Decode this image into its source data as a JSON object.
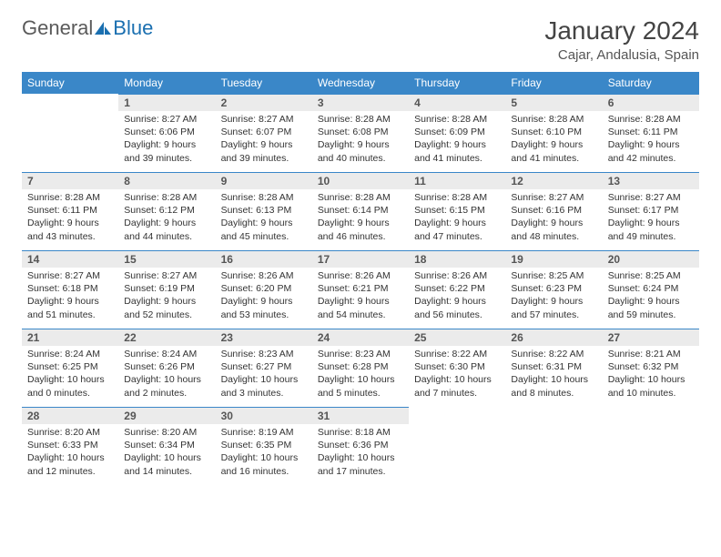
{
  "logo": {
    "general": "General",
    "blue": "Blue"
  },
  "title": "January 2024",
  "location": "Cajar, Andalusia, Spain",
  "colors": {
    "header_bg": "#3a87c8",
    "header_text": "#ffffff",
    "daynum_bg": "#ebebeb",
    "daynum_border": "#3a87c8",
    "logo_gray": "#5a5a5a",
    "logo_blue": "#1a6fb0"
  },
  "font": {
    "family": "Arial",
    "title_size": 28,
    "location_size": 15,
    "header_size": 12,
    "day_size": 10.5
  },
  "weekdays": [
    "Sunday",
    "Monday",
    "Tuesday",
    "Wednesday",
    "Thursday",
    "Friday",
    "Saturday"
  ],
  "start_offset": 1,
  "days": [
    {
      "n": "1",
      "sr": "8:27 AM",
      "ss": "6:06 PM",
      "dl": "9 hours and 39 minutes."
    },
    {
      "n": "2",
      "sr": "8:27 AM",
      "ss": "6:07 PM",
      "dl": "9 hours and 39 minutes."
    },
    {
      "n": "3",
      "sr": "8:28 AM",
      "ss": "6:08 PM",
      "dl": "9 hours and 40 minutes."
    },
    {
      "n": "4",
      "sr": "8:28 AM",
      "ss": "6:09 PM",
      "dl": "9 hours and 41 minutes."
    },
    {
      "n": "5",
      "sr": "8:28 AM",
      "ss": "6:10 PM",
      "dl": "9 hours and 41 minutes."
    },
    {
      "n": "6",
      "sr": "8:28 AM",
      "ss": "6:11 PM",
      "dl": "9 hours and 42 minutes."
    },
    {
      "n": "7",
      "sr": "8:28 AM",
      "ss": "6:11 PM",
      "dl": "9 hours and 43 minutes."
    },
    {
      "n": "8",
      "sr": "8:28 AM",
      "ss": "6:12 PM",
      "dl": "9 hours and 44 minutes."
    },
    {
      "n": "9",
      "sr": "8:28 AM",
      "ss": "6:13 PM",
      "dl": "9 hours and 45 minutes."
    },
    {
      "n": "10",
      "sr": "8:28 AM",
      "ss": "6:14 PM",
      "dl": "9 hours and 46 minutes."
    },
    {
      "n": "11",
      "sr": "8:28 AM",
      "ss": "6:15 PM",
      "dl": "9 hours and 47 minutes."
    },
    {
      "n": "12",
      "sr": "8:27 AM",
      "ss": "6:16 PM",
      "dl": "9 hours and 48 minutes."
    },
    {
      "n": "13",
      "sr": "8:27 AM",
      "ss": "6:17 PM",
      "dl": "9 hours and 49 minutes."
    },
    {
      "n": "14",
      "sr": "8:27 AM",
      "ss": "6:18 PM",
      "dl": "9 hours and 51 minutes."
    },
    {
      "n": "15",
      "sr": "8:27 AM",
      "ss": "6:19 PM",
      "dl": "9 hours and 52 minutes."
    },
    {
      "n": "16",
      "sr": "8:26 AM",
      "ss": "6:20 PM",
      "dl": "9 hours and 53 minutes."
    },
    {
      "n": "17",
      "sr": "8:26 AM",
      "ss": "6:21 PM",
      "dl": "9 hours and 54 minutes."
    },
    {
      "n": "18",
      "sr": "8:26 AM",
      "ss": "6:22 PM",
      "dl": "9 hours and 56 minutes."
    },
    {
      "n": "19",
      "sr": "8:25 AM",
      "ss": "6:23 PM",
      "dl": "9 hours and 57 minutes."
    },
    {
      "n": "20",
      "sr": "8:25 AM",
      "ss": "6:24 PM",
      "dl": "9 hours and 59 minutes."
    },
    {
      "n": "21",
      "sr": "8:24 AM",
      "ss": "6:25 PM",
      "dl": "10 hours and 0 minutes."
    },
    {
      "n": "22",
      "sr": "8:24 AM",
      "ss": "6:26 PM",
      "dl": "10 hours and 2 minutes."
    },
    {
      "n": "23",
      "sr": "8:23 AM",
      "ss": "6:27 PM",
      "dl": "10 hours and 3 minutes."
    },
    {
      "n": "24",
      "sr": "8:23 AM",
      "ss": "6:28 PM",
      "dl": "10 hours and 5 minutes."
    },
    {
      "n": "25",
      "sr": "8:22 AM",
      "ss": "6:30 PM",
      "dl": "10 hours and 7 minutes."
    },
    {
      "n": "26",
      "sr": "8:22 AM",
      "ss": "6:31 PM",
      "dl": "10 hours and 8 minutes."
    },
    {
      "n": "27",
      "sr": "8:21 AM",
      "ss": "6:32 PM",
      "dl": "10 hours and 10 minutes."
    },
    {
      "n": "28",
      "sr": "8:20 AM",
      "ss": "6:33 PM",
      "dl": "10 hours and 12 minutes."
    },
    {
      "n": "29",
      "sr": "8:20 AM",
      "ss": "6:34 PM",
      "dl": "10 hours and 14 minutes."
    },
    {
      "n": "30",
      "sr": "8:19 AM",
      "ss": "6:35 PM",
      "dl": "10 hours and 16 minutes."
    },
    {
      "n": "31",
      "sr": "8:18 AM",
      "ss": "6:36 PM",
      "dl": "10 hours and 17 minutes."
    }
  ],
  "labels": {
    "sunrise": "Sunrise:",
    "sunset": "Sunset:",
    "daylight": "Daylight:"
  }
}
